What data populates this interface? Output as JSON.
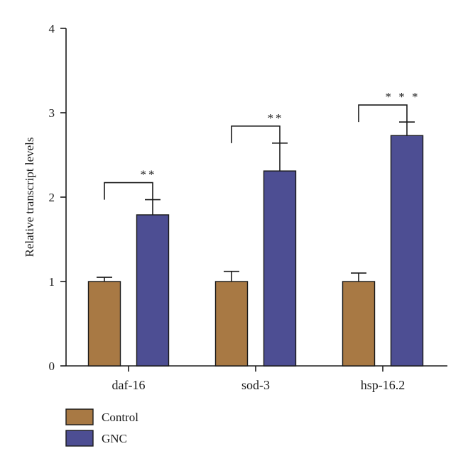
{
  "chart_data": {
    "type": "bar",
    "title": "",
    "xlabel": "",
    "ylabel": "Relative transcript levels",
    "ylim": [
      0,
      4
    ],
    "yticks": [
      0,
      1,
      2,
      3,
      4
    ],
    "categories": [
      "daf-16",
      "sod-3",
      "hsp-16.2"
    ],
    "series": [
      {
        "name": "Control",
        "values": [
          1.0,
          1.0,
          1.0
        ],
        "errors": [
          0.05,
          0.12,
          0.1
        ],
        "color": "#a87944"
      },
      {
        "name": "GNC",
        "values": [
          1.79,
          2.31,
          2.73
        ],
        "errors": [
          0.18,
          0.33,
          0.16
        ],
        "color": "#4d4e93"
      }
    ],
    "significance": [
      "**",
      "**",
      "* * *"
    ],
    "grid": false,
    "legend": "bottom-left"
  }
}
